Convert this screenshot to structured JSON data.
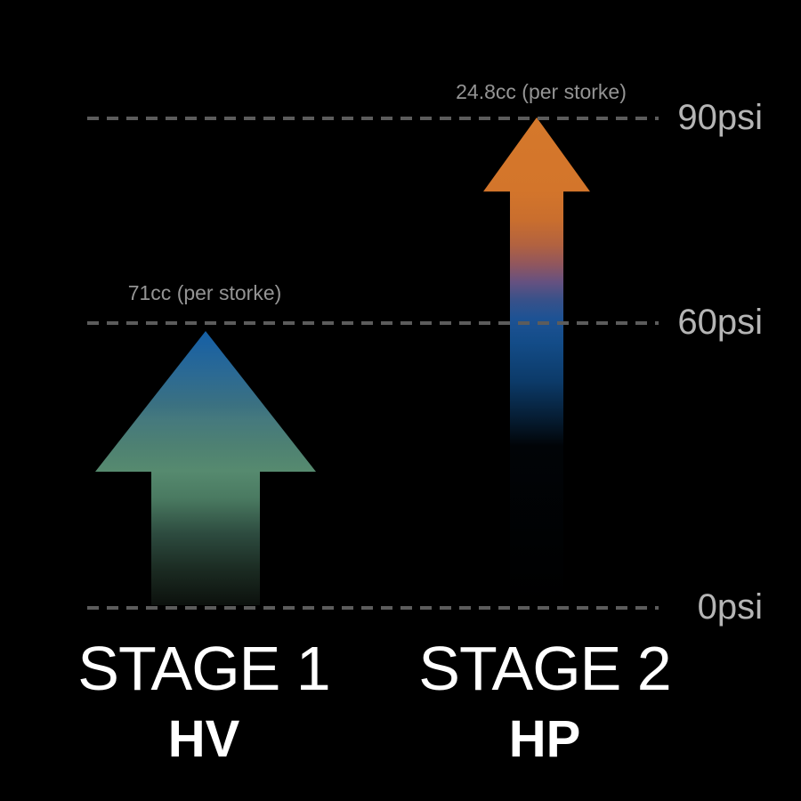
{
  "chart_data": {
    "type": "bar",
    "title": "",
    "categories": [
      "STAGE 1",
      "STAGE 2"
    ],
    "series": [
      {
        "name": "STAGE 1 (HV)",
        "pressure_psi": 60,
        "volume_per_stroke_cc": 71
      },
      {
        "name": "STAGE 2 (HP)",
        "pressure_psi": 90,
        "volume_per_stroke_cc": 24.8
      }
    ],
    "y_axis": {
      "unit": "psi",
      "ticks": [
        0,
        60,
        90
      ],
      "tick_labels": [
        "0psi",
        "60psi",
        "90psi"
      ],
      "range": [
        0,
        90
      ]
    },
    "grid": "horizontal-dashed",
    "legend": "none",
    "annotations": [
      "71cc (per storke)",
      "24.8cc (per storke)"
    ]
  },
  "gridlines": [
    {
      "id": "psi90",
      "label": "90psi"
    },
    {
      "id": "psi60",
      "label": "60psi"
    },
    {
      "id": "psi0",
      "label": "0psi"
    }
  ],
  "stage1": {
    "annotation": "71cc (per storke)",
    "title": "STAGE 1",
    "subtitle": "HV",
    "top_pressure_psi": 60,
    "gradient": {
      "top": "#155fa6",
      "mid": "#568a6f",
      "bottom": "#0c110d"
    }
  },
  "stage2": {
    "annotation": "24.8cc (per storke)",
    "title": "STAGE 2",
    "subtitle": "HP",
    "top_pressure_psi": 90,
    "gradient": {
      "top": "#d5782b",
      "mid": "#1d5294",
      "bottom": "#000000"
    }
  },
  "colors": {
    "background": "#000000",
    "grid_line": "#5c5c5c",
    "axis_label": "#b5b5b5",
    "annotation_text": "#949494",
    "stage_text": "#ffffff"
  }
}
